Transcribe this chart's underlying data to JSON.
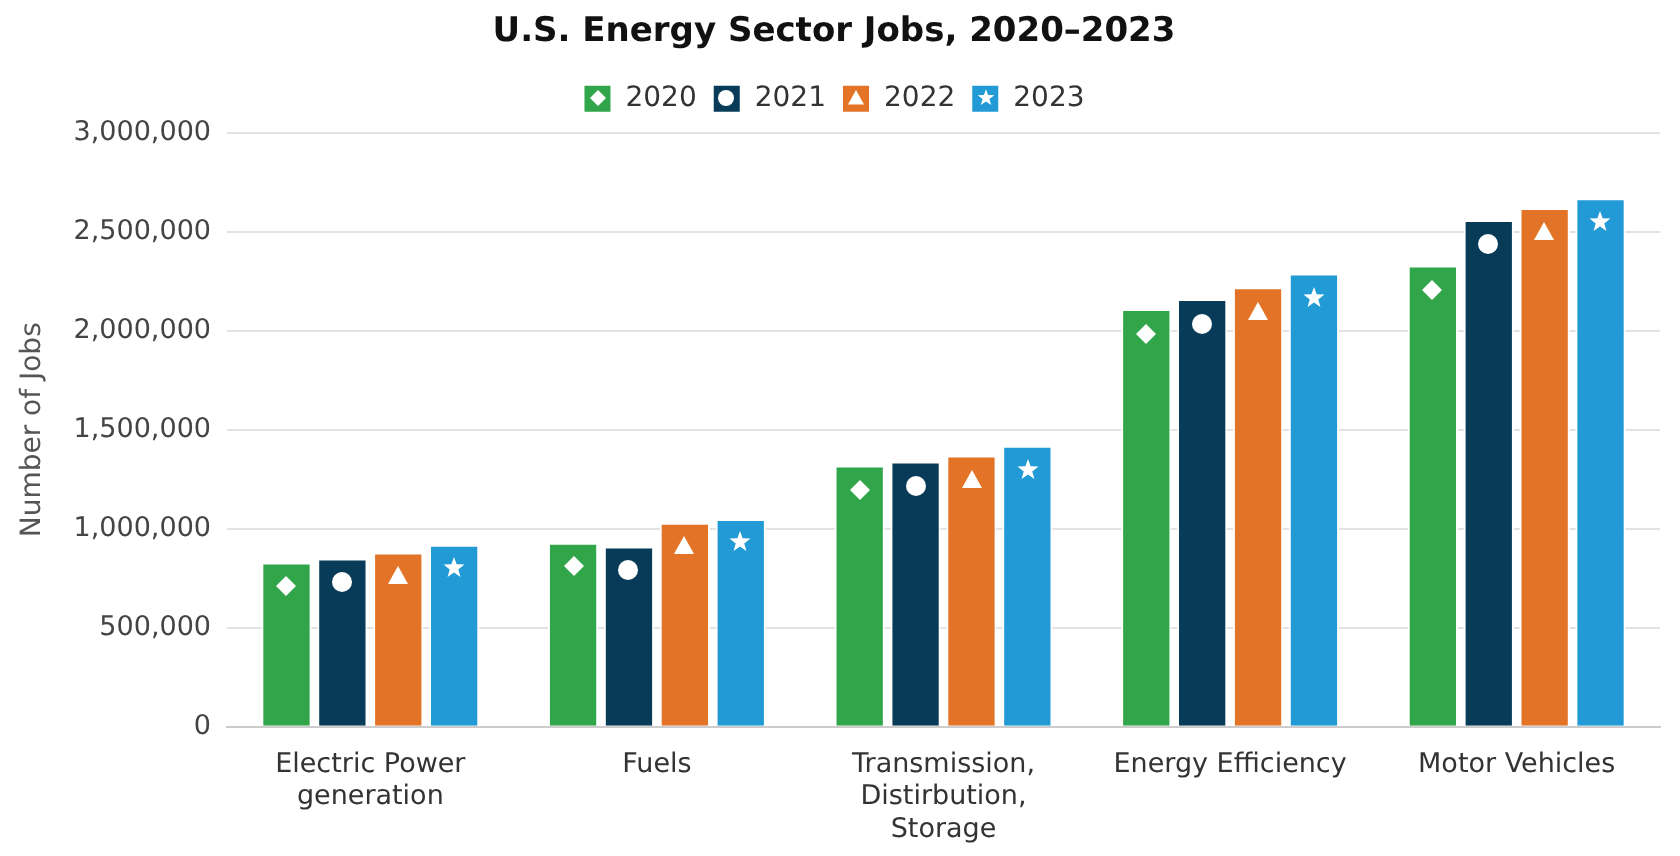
{
  "chart_data": {
    "type": "bar",
    "title": "U.S. Energy Sector Jobs, 2020–2023",
    "ylabel": "Number of Jobs",
    "categories": [
      "Electric Power generation",
      "Fuels",
      "Transmission, Distirbution, Storage",
      "Energy Efficiency",
      "Motor Vehicles"
    ],
    "series": [
      {
        "name": "2020",
        "color": "#31a54a",
        "marker": "diamond",
        "values": [
          830000,
          930000,
          1320000,
          2110000,
          2330000
        ]
      },
      {
        "name": "2021",
        "color": "#073b57",
        "marker": "circle",
        "values": [
          850000,
          910000,
          1340000,
          2160000,
          2560000
        ]
      },
      {
        "name": "2022",
        "color": "#e37427",
        "marker": "triangle",
        "values": [
          880000,
          1030000,
          1370000,
          2220000,
          2620000
        ]
      },
      {
        "name": "2023",
        "color": "#219ad6",
        "marker": "star",
        "values": [
          920000,
          1050000,
          1420000,
          2290000,
          2670000
        ]
      }
    ],
    "ylim": [
      0,
      3000000
    ],
    "yticks": [
      0,
      {
        "value": 500000,
        "label": "500,000"
      },
      {
        "value": 1000000,
        "label": "1,000,000"
      },
      {
        "value": 1500000,
        "label": "1,500,000"
      },
      {
        "value": 2000000,
        "label": "2,000,000"
      },
      {
        "value": 2500000,
        "label": "2,500,000"
      },
      {
        "value": 3000000,
        "label": "3,000,000"
      }
    ],
    "grid": "y",
    "legend": "top"
  }
}
